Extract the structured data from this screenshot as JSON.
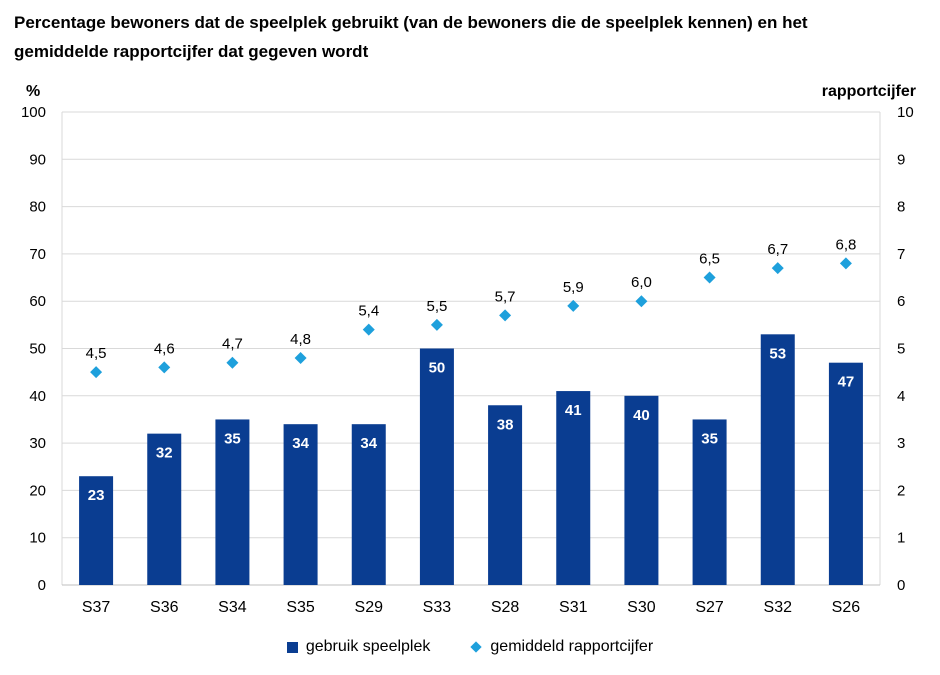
{
  "title_line1": "Percentage bewoners dat de speelplek gebruikt (van de bewoners die de speelplek kennen) en het",
  "title_line2": "gemiddelde rapportcijfer dat gegeven wordt",
  "colors": {
    "bar": "#0a3d91",
    "marker": "#1ea0dc",
    "grid": "#d9d9d9"
  },
  "chart_data": {
    "type": "bar",
    "categories": [
      "S37",
      "S36",
      "S34",
      "S35",
      "S29",
      "S33",
      "S28",
      "S31",
      "S30",
      "S27",
      "S32",
      "S26"
    ],
    "series": [
      {
        "name": "gebruik speelplek",
        "type": "bar",
        "axis": "left",
        "values": [
          23,
          32,
          35,
          34,
          34,
          50,
          38,
          41,
          40,
          35,
          53,
          47
        ],
        "labels": [
          "23",
          "32",
          "35",
          "34",
          "34",
          "50",
          "38",
          "41",
          "40",
          "35",
          "53",
          "47"
        ]
      },
      {
        "name": "gemiddeld rapportcijfer",
        "type": "scatter",
        "axis": "right",
        "values": [
          4.5,
          4.6,
          4.7,
          4.8,
          5.4,
          5.5,
          5.7,
          5.9,
          6.0,
          6.5,
          6.7,
          6.8
        ],
        "labels": [
          "4,5",
          "4,6",
          "4,7",
          "4,8",
          "5,4",
          "5,5",
          "5,7",
          "5,9",
          "6,0",
          "6,5",
          "6,7",
          "6,8"
        ]
      }
    ],
    "ylabel_left": "%",
    "ylabel_right": "rapportcijfer",
    "ylim_left": [
      0,
      100
    ],
    "ylim_right": [
      0,
      10
    ],
    "yticks_left": [
      "0",
      "10",
      "20",
      "30",
      "40",
      "50",
      "60",
      "70",
      "80",
      "90",
      "100"
    ],
    "yticks_right": [
      "0",
      "1",
      "2",
      "3",
      "4",
      "5",
      "6",
      "7",
      "8",
      "9",
      "10"
    ],
    "grid": true,
    "legend_position": "bottom"
  },
  "legend": {
    "bar_label": "gebruik speelplek",
    "marker_label": "gemiddeld rapportcijfer"
  }
}
